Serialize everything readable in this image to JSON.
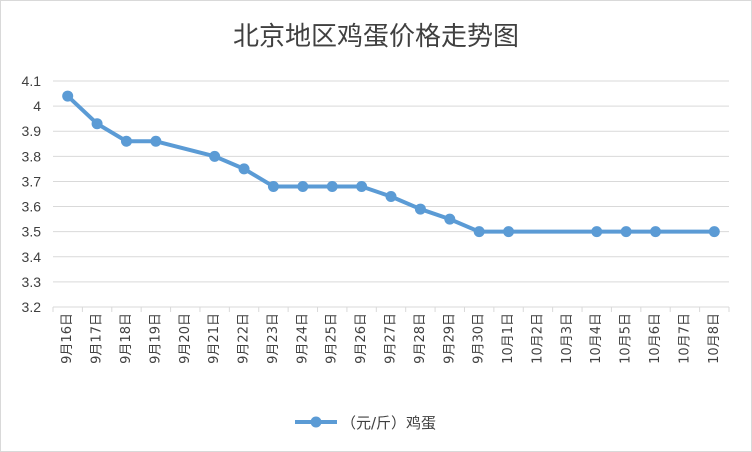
{
  "chart_data": {
    "type": "line",
    "title": "北京地区鸡蛋价格走势图",
    "categories": [
      "9月16日",
      "9月17日",
      "9月18日",
      "9月19日",
      "9月20日",
      "9月21日",
      "9月22日",
      "9月23日",
      "9月24日",
      "9月25日",
      "9月26日",
      "9月27日",
      "9月28日",
      "9月29日",
      "9月30日",
      "10月1日",
      "10月2日",
      "10月3日",
      "10月4日",
      "10月5日",
      "10月6日",
      "10月7日",
      "10月8日"
    ],
    "series": [
      {
        "name": "（元/斤）鸡蛋",
        "color": "#5b9bd5",
        "values": [
          4.04,
          3.93,
          3.86,
          3.86,
          null,
          3.8,
          3.75,
          3.68,
          3.68,
          3.68,
          3.68,
          3.64,
          3.59,
          3.55,
          3.5,
          3.5,
          null,
          null,
          3.5,
          3.5,
          3.5,
          null,
          3.5
        ]
      }
    ],
    "ylim": [
      3.2,
      4.1
    ],
    "yticks": [
      "3.2",
      "3.3",
      "3.4",
      "3.5",
      "3.6",
      "3.7",
      "3.8",
      "3.9",
      "4",
      "4.1"
    ],
    "grid": true,
    "legend": "bottom",
    "xlabel": "",
    "ylabel": ""
  }
}
